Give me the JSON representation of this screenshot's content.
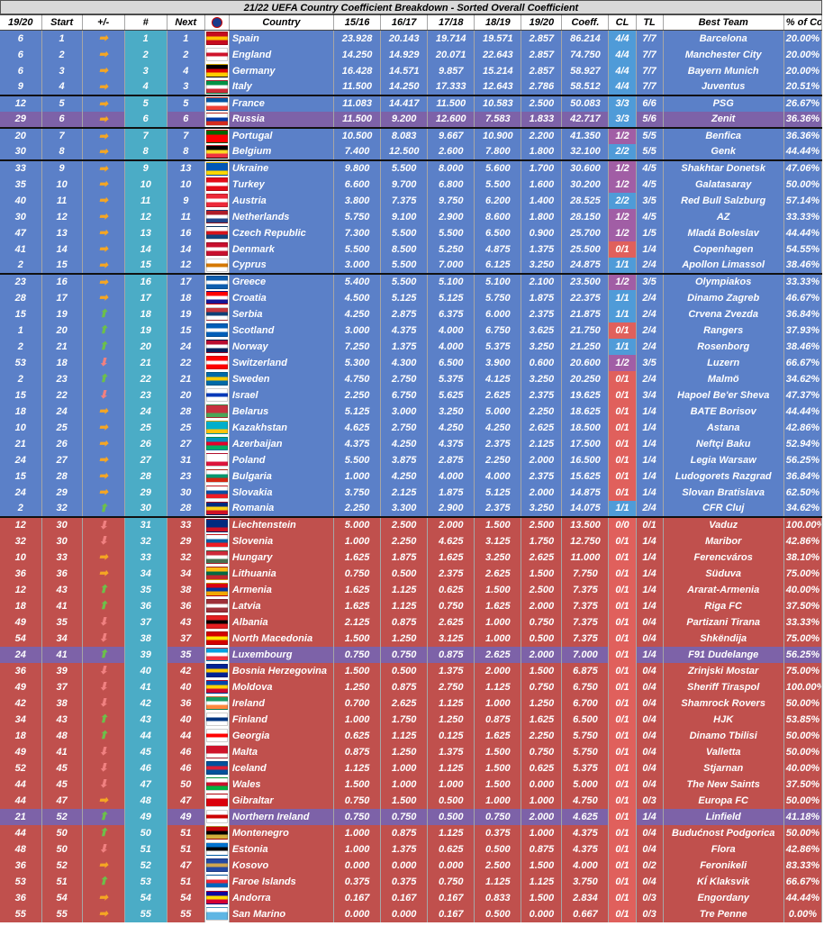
{
  "title": "21/22 UEFA Country Coefficient Breakdown - Sorted Overall Coefficient",
  "headers": [
    "19/20",
    "Start",
    "+/-",
    "#",
    "Next",
    "",
    "Country",
    "15/16",
    "16/17",
    "17/18",
    "18/19",
    "19/20",
    "Coeff.",
    "CL",
    "TL",
    "Best Team",
    "% of Coeff."
  ],
  "rows": [
    [
      "6",
      "1",
      "same",
      "1",
      "1",
      "#c60b1e|#ffc400|#c60b1e",
      "Spain",
      "23.928",
      "20.143",
      "19.714",
      "19.571",
      "2.857",
      "86.214",
      "4/4",
      "7/7",
      "Barcelona",
      "20.00%",
      "blue",
      "",
      "cl-b"
    ],
    [
      "6",
      "2",
      "same",
      "2",
      "2",
      "#ffffff|#cf142b|#ffffff",
      "England",
      "14.250",
      "14.929",
      "20.071",
      "22.643",
      "2.857",
      "74.750",
      "4/4",
      "7/7",
      "Manchester City",
      "20.00%",
      "blue",
      "",
      "cl-b"
    ],
    [
      "6",
      "3",
      "same",
      "3",
      "4",
      "#000000|#dd0000|#ffce00",
      "Germany",
      "16.428",
      "14.571",
      "9.857",
      "15.214",
      "2.857",
      "58.927",
      "4/4",
      "7/7",
      "Bayern Munich",
      "20.00%",
      "blue",
      "",
      "cl-b"
    ],
    [
      "9",
      "4",
      "same",
      "4",
      "3",
      "#009246|#ffffff|#ce2b37",
      "Italy",
      "11.500",
      "14.250",
      "17.333",
      "12.643",
      "2.786",
      "58.512",
      "4/4",
      "7/7",
      "Juventus",
      "20.51%",
      "blue",
      "",
      "cl-b"
    ],
    [
      "12",
      "5",
      "same",
      "5",
      "5",
      "#0055a4|#ffffff|#ef4135",
      "France",
      "11.083",
      "14.417",
      "11.500",
      "10.583",
      "2.500",
      "50.083",
      "3/3",
      "6/6",
      "PSG",
      "26.67%",
      "blue",
      "bt",
      "cl-b"
    ],
    [
      "29",
      "6",
      "same",
      "6",
      "6",
      "#ffffff|#0039a6|#d52b1e",
      "Russia",
      "11.500",
      "9.200",
      "12.600",
      "7.583",
      "1.833",
      "42.717",
      "3/3",
      "5/6",
      "Zenit",
      "36.36%",
      "purple",
      "",
      "cl-b"
    ],
    [
      "20",
      "7",
      "same",
      "7",
      "7",
      "#006600|#ff0000|#ff0000",
      "Portugal",
      "10.500",
      "8.083",
      "9.667",
      "10.900",
      "2.200",
      "41.350",
      "1/2",
      "5/5",
      "Benfica",
      "36.36%",
      "blue",
      "bt",
      "cl-p"
    ],
    [
      "30",
      "8",
      "same",
      "8",
      "8",
      "#000000|#fdda24|#ef3340",
      "Belgium",
      "7.400",
      "12.500",
      "2.600",
      "7.800",
      "1.800",
      "32.100",
      "2/2",
      "5/5",
      "Genk",
      "44.44%",
      "blue",
      "",
      "cl-b"
    ],
    [
      "33",
      "9",
      "same",
      "9",
      "13",
      "#0057b7|#0057b7|#ffd700",
      "Ukraine",
      "9.800",
      "5.500",
      "8.000",
      "5.600",
      "1.700",
      "30.600",
      "1/2",
      "4/5",
      "Shakhtar Donetsk",
      "47.06%",
      "blue",
      "bt",
      "cl-p"
    ],
    [
      "35",
      "10",
      "same",
      "10",
      "10",
      "#e30a17|#ffffff|#e30a17",
      "Turkey",
      "6.600",
      "9.700",
      "6.800",
      "5.500",
      "1.600",
      "30.200",
      "1/2",
      "4/5",
      "Galatasaray",
      "50.00%",
      "blue",
      "",
      "cl-p"
    ],
    [
      "40",
      "11",
      "same",
      "11",
      "9",
      "#ed2939|#ffffff|#ed2939",
      "Austria",
      "3.800",
      "7.375",
      "9.750",
      "6.200",
      "1.400",
      "28.525",
      "2/2",
      "3/5",
      "Red Bull Salzburg",
      "57.14%",
      "blue",
      "",
      "cl-b"
    ],
    [
      "30",
      "12",
      "same",
      "12",
      "11",
      "#ae1c28|#ffffff|#21468b",
      "Netherlands",
      "5.750",
      "9.100",
      "2.900",
      "8.600",
      "1.800",
      "28.150",
      "1/2",
      "4/5",
      "AZ",
      "33.33%",
      "blue",
      "",
      "cl-p"
    ],
    [
      "47",
      "13",
      "same",
      "13",
      "16",
      "#ffffff|#d7141a|#11457e",
      "Czech Republic",
      "7.300",
      "5.500",
      "5.500",
      "6.500",
      "0.900",
      "25.700",
      "1/2",
      "1/5",
      "Mladá Boleslav",
      "44.44%",
      "blue",
      "",
      "cl-p"
    ],
    [
      "41",
      "14",
      "same",
      "14",
      "14",
      "#c8102e|#ffffff|#c8102e",
      "Denmark",
      "5.500",
      "8.500",
      "5.250",
      "4.875",
      "1.375",
      "25.500",
      "0/1",
      "1/4",
      "Copenhagen",
      "54.55%",
      "blue",
      "",
      "cl-r"
    ],
    [
      "2",
      "15",
      "same",
      "15",
      "12",
      "#ffffff|#d57800|#ffffff",
      "Cyprus",
      "3.000",
      "5.500",
      "7.000",
      "6.125",
      "3.250",
      "24.875",
      "1/1",
      "2/4",
      "Apollon Limassol",
      "38.46%",
      "blue",
      "",
      "cl-b"
    ],
    [
      "23",
      "16",
      "same",
      "16",
      "17",
      "#0d5eaf|#ffffff|#0d5eaf",
      "Greece",
      "5.400",
      "5.500",
      "5.100",
      "5.100",
      "2.100",
      "23.500",
      "1/2",
      "3/5",
      "Olympiakos",
      "33.33%",
      "blue",
      "bt",
      "cl-p"
    ],
    [
      "28",
      "17",
      "same",
      "17",
      "18",
      "#ff0000|#ffffff|#171796",
      "Croatia",
      "4.500",
      "5.125",
      "5.125",
      "5.750",
      "1.875",
      "22.375",
      "1/1",
      "2/4",
      "Dinamo Zagreb",
      "46.67%",
      "blue",
      "",
      "cl-b"
    ],
    [
      "15",
      "19",
      "up",
      "18",
      "19",
      "#c6363c|#0c4076|#ffffff",
      "Serbia",
      "4.250",
      "2.875",
      "6.375",
      "6.000",
      "2.375",
      "21.875",
      "1/1",
      "2/4",
      "Crvena Zvezda",
      "36.84%",
      "blue",
      "",
      "cl-b"
    ],
    [
      "1",
      "20",
      "up",
      "19",
      "15",
      "#005eb8|#ffffff|#005eb8",
      "Scotland",
      "3.000",
      "4.375",
      "4.000",
      "6.750",
      "3.625",
      "21.750",
      "0/1",
      "2/4",
      "Rangers",
      "37.93%",
      "blue",
      "",
      "cl-r"
    ],
    [
      "2",
      "21",
      "up",
      "20",
      "24",
      "#ba0c2f|#ffffff|#00205b",
      "Norway",
      "7.250",
      "1.375",
      "4.000",
      "5.375",
      "3.250",
      "21.250",
      "1/1",
      "2/4",
      "Rosenborg",
      "38.46%",
      "blue",
      "",
      "cl-b"
    ],
    [
      "53",
      "18",
      "down",
      "21",
      "22",
      "#ff0000|#ffffff|#ff0000",
      "Switzerland",
      "5.300",
      "4.300",
      "6.500",
      "3.900",
      "0.600",
      "20.600",
      "1/2",
      "3/5",
      "Luzern",
      "66.67%",
      "blue",
      "",
      "cl-p"
    ],
    [
      "2",
      "23",
      "up",
      "22",
      "21",
      "#006aa7|#fecc00|#006aa7",
      "Sweden",
      "4.750",
      "2.750",
      "5.375",
      "4.125",
      "3.250",
      "20.250",
      "0/1",
      "2/4",
      "Malmö",
      "34.62%",
      "blue",
      "",
      "cl-r"
    ],
    [
      "15",
      "22",
      "down",
      "23",
      "20",
      "#ffffff|#0038b8|#ffffff",
      "Israel",
      "2.250",
      "6.750",
      "5.625",
      "2.625",
      "2.375",
      "19.625",
      "0/1",
      "3/4",
      "Hapoel Be'er Sheva",
      "47.37%",
      "blue",
      "",
      "cl-r"
    ],
    [
      "18",
      "24",
      "same",
      "24",
      "28",
      "#c8313e|#c8313e|#4aa657",
      "Belarus",
      "5.125",
      "3.000",
      "3.250",
      "5.000",
      "2.250",
      "18.625",
      "0/1",
      "1/4",
      "BATE Borisov",
      "44.44%",
      "blue",
      "",
      "cl-r"
    ],
    [
      "10",
      "25",
      "same",
      "25",
      "25",
      "#00afca|#00afca|#fec50c",
      "Kazakhstan",
      "4.625",
      "2.750",
      "4.250",
      "4.250",
      "2.625",
      "18.500",
      "0/1",
      "1/4",
      "Astana",
      "42.86%",
      "blue",
      "",
      "cl-r"
    ],
    [
      "21",
      "26",
      "same",
      "26",
      "27",
      "#0092bc|#e4002b|#00af66",
      "Azerbaijan",
      "4.375",
      "4.250",
      "4.375",
      "2.375",
      "2.125",
      "17.500",
      "0/1",
      "1/4",
      "Neftçi Baku",
      "52.94%",
      "blue",
      "",
      "cl-r"
    ],
    [
      "24",
      "27",
      "same",
      "27",
      "31",
      "#ffffff|#ffffff|#dc143c",
      "Poland",
      "5.500",
      "3.875",
      "2.875",
      "2.250",
      "2.000",
      "16.500",
      "0/1",
      "1/4",
      "Legia Warsaw",
      "56.25%",
      "blue",
      "",
      "cl-r"
    ],
    [
      "15",
      "28",
      "same",
      "28",
      "23",
      "#ffffff|#00966e|#d62612",
      "Bulgaria",
      "1.000",
      "4.250",
      "4.000",
      "4.000",
      "2.375",
      "15.625",
      "0/1",
      "1/4",
      "Ludogorets Razgrad",
      "36.84%",
      "blue",
      "",
      "cl-r"
    ],
    [
      "24",
      "29",
      "same",
      "29",
      "30",
      "#ffffff|#0b4ea2|#ee1c25",
      "Slovakia",
      "3.750",
      "2.125",
      "1.875",
      "5.125",
      "2.000",
      "14.875",
      "0/1",
      "1/4",
      "Slovan Bratislava",
      "62.50%",
      "blue",
      "",
      "cl-r"
    ],
    [
      "2",
      "32",
      "up",
      "30",
      "28",
      "#002b7f|#fcd116|#ce1126",
      "Romania",
      "2.250",
      "3.300",
      "2.900",
      "2.375",
      "3.250",
      "14.075",
      "1/1",
      "2/4",
      "CFR Cluj",
      "34.62%",
      "blue",
      "",
      "cl-b"
    ],
    [
      "12",
      "30",
      "down",
      "31",
      "33",
      "#002b7f|#002b7f|#ce1126",
      "Liechtenstein",
      "5.000",
      "2.500",
      "2.000",
      "1.500",
      "2.500",
      "13.500",
      "0/0",
      "0/1",
      "Vaduz",
      "100.00%",
      "red",
      "bt",
      "cl-r"
    ],
    [
      "32",
      "30",
      "down",
      "32",
      "29",
      "#ffffff|#005da4|#ed1c24",
      "Slovenia",
      "1.000",
      "2.250",
      "4.625",
      "3.125",
      "1.750",
      "12.750",
      "0/1",
      "1/4",
      "Maribor",
      "42.86%",
      "red",
      "",
      "cl-r"
    ],
    [
      "10",
      "33",
      "same",
      "33",
      "32",
      "#ce2939|#ffffff|#477050",
      "Hungary",
      "1.625",
      "1.875",
      "1.625",
      "3.250",
      "2.625",
      "11.000",
      "0/1",
      "1/4",
      "Ferencváros",
      "38.10%",
      "red",
      "",
      "cl-r"
    ],
    [
      "36",
      "36",
      "same",
      "34",
      "34",
      "#fdb913|#006a44|#c1272d",
      "Lithuania",
      "0.750",
      "0.500",
      "2.375",
      "2.625",
      "1.500",
      "7.750",
      "0/1",
      "1/4",
      "Süduva",
      "75.00%",
      "red",
      "",
      "cl-r"
    ],
    [
      "12",
      "43",
      "up",
      "35",
      "38",
      "#d90012|#0033a0|#f2a800",
      "Armenia",
      "1.625",
      "1.125",
      "0.625",
      "1.500",
      "2.500",
      "7.375",
      "0/1",
      "1/4",
      "Ararat-Armenia",
      "40.00%",
      "red",
      "",
      "cl-r"
    ],
    [
      "18",
      "41",
      "up",
      "36",
      "36",
      "#9e3039|#ffffff|#9e3039",
      "Latvia",
      "1.625",
      "1.125",
      "0.750",
      "1.625",
      "2.000",
      "7.375",
      "0/1",
      "1/4",
      "Riga FC",
      "37.50%",
      "red",
      "",
      "cl-r"
    ],
    [
      "49",
      "35",
      "down",
      "37",
      "43",
      "#e41e20|#000000|#e41e20",
      "Albania",
      "2.125",
      "0.875",
      "2.625",
      "1.000",
      "0.750",
      "7.375",
      "0/1",
      "0/4",
      "Partizani Tirana",
      "33.33%",
      "red",
      "",
      "cl-r"
    ],
    [
      "54",
      "34",
      "down",
      "38",
      "37",
      "#d20000|#ffe600|#d20000",
      "North Macedonia",
      "1.500",
      "1.250",
      "3.125",
      "1.000",
      "0.500",
      "7.375",
      "0/1",
      "0/4",
      "Shkëndija",
      "75.00%",
      "red",
      "",
      "cl-r"
    ],
    [
      "24",
      "41",
      "up",
      "39",
      "35",
      "#00a2e1|#ffffff|#ef3340",
      "Luxembourg",
      "0.750",
      "0.750",
      "0.875",
      "2.625",
      "2.000",
      "7.000",
      "0/1",
      "1/4",
      "F91 Dudelange",
      "56.25%",
      "purple",
      "",
      "cl-r"
    ],
    [
      "36",
      "39",
      "down",
      "40",
      "42",
      "#002395|#fecb00|#002395",
      "Bosnia Herzegovina",
      "1.500",
      "0.500",
      "1.375",
      "2.000",
      "1.500",
      "6.875",
      "0/1",
      "0/4",
      "Zrinjski Mostar",
      "75.00%",
      "red",
      "",
      "cl-r"
    ],
    [
      "49",
      "37",
      "down",
      "41",
      "40",
      "#0046ae|#ffd200|#cc092f",
      "Moldova",
      "1.250",
      "0.875",
      "2.750",
      "1.125",
      "0.750",
      "6.750",
      "0/1",
      "0/4",
      "Sheriff Tiraspol",
      "100.00%",
      "red",
      "",
      "cl-r"
    ],
    [
      "42",
      "38",
      "down",
      "42",
      "36",
      "#169b62|#ffffff|#ff883e",
      "Ireland",
      "0.700",
      "2.625",
      "1.125",
      "1.000",
      "1.250",
      "6.700",
      "0/1",
      "0/4",
      "Shamrock Rovers",
      "50.00%",
      "red",
      "",
      "cl-r"
    ],
    [
      "34",
      "43",
      "up",
      "43",
      "40",
      "#ffffff|#003580|#ffffff",
      "Finland",
      "1.000",
      "1.750",
      "1.250",
      "0.875",
      "1.625",
      "6.500",
      "0/1",
      "0/4",
      "HJK",
      "53.85%",
      "red",
      "",
      "cl-r"
    ],
    [
      "18",
      "48",
      "up",
      "44",
      "44",
      "#ffffff|#ff0000|#ffffff",
      "Georgia",
      "0.625",
      "1.125",
      "0.125",
      "1.625",
      "2.250",
      "5.750",
      "0/1",
      "0/4",
      "Dinamo Tbilisi",
      "50.00%",
      "red",
      "",
      "cl-r"
    ],
    [
      "49",
      "41",
      "down",
      "45",
      "46",
      "#cf142b|#cf142b|#ffffff",
      "Malta",
      "0.875",
      "1.250",
      "1.375",
      "1.500",
      "0.750",
      "5.750",
      "0/1",
      "0/4",
      "Valletta",
      "50.00%",
      "red",
      "",
      "cl-r"
    ],
    [
      "52",
      "45",
      "down",
      "46",
      "46",
      "#02529c|#dc1e35|#02529c",
      "Iceland",
      "1.125",
      "1.000",
      "1.125",
      "1.500",
      "0.625",
      "5.375",
      "0/1",
      "0/4",
      "Stjarnan",
      "40.00%",
      "red",
      "",
      "cl-r"
    ],
    [
      "44",
      "45",
      "down",
      "47",
      "50",
      "#ffffff|#c8102e|#00b140",
      "Wales",
      "1.500",
      "1.000",
      "1.000",
      "1.500",
      "0.000",
      "5.000",
      "0/1",
      "0/4",
      "The New Saints",
      "37.50%",
      "red",
      "",
      "cl-r"
    ],
    [
      "44",
      "47",
      "same",
      "48",
      "47",
      "#ffffff|#da000c|#da000c",
      "Gibraltar",
      "0.750",
      "1.500",
      "0.500",
      "1.000",
      "1.000",
      "4.750",
      "0/1",
      "0/3",
      "Europa FC",
      "50.00%",
      "red",
      "",
      "cl-r"
    ],
    [
      "21",
      "52",
      "up",
      "49",
      "49",
      "#ffffff|#cc0000|#ffffff",
      "Northern Ireland",
      "0.750",
      "0.750",
      "0.500",
      "0.750",
      "2.000",
      "4.625",
      "0/1",
      "1/4",
      "Linfield",
      "41.18%",
      "purple",
      "",
      "cl-r"
    ],
    [
      "44",
      "50",
      "up",
      "50",
      "51",
      "#c40308|#000000|#d3ae3b",
      "Montenegro",
      "1.000",
      "0.875",
      "1.125",
      "0.375",
      "1.000",
      "4.375",
      "0/1",
      "0/4",
      "Budućnost Podgorica",
      "50.00%",
      "red",
      "",
      "cl-r"
    ],
    [
      "48",
      "50",
      "down",
      "51",
      "51",
      "#0072ce|#000000|#ffffff",
      "Estonia",
      "1.000",
      "1.375",
      "0.625",
      "0.500",
      "0.875",
      "4.375",
      "0/1",
      "0/4",
      "Flora",
      "42.86%",
      "red",
      "",
      "cl-r"
    ],
    [
      "36",
      "52",
      "same",
      "52",
      "47",
      "#244aa5|#d0a650|#244aa5",
      "Kosovo",
      "0.000",
      "0.000",
      "0.000",
      "2.500",
      "1.500",
      "4.000",
      "0/1",
      "0/2",
      "Feronikeli",
      "83.33%",
      "red",
      "",
      "cl-r"
    ],
    [
      "53",
      "51",
      "up",
      "53",
      "51",
      "#ffffff|#ed2939|#0065bd",
      "Faroe Islands",
      "0.375",
      "0.375",
      "0.750",
      "1.125",
      "1.125",
      "3.750",
      "0/1",
      "0/4",
      "KÍ Klaksvik",
      "66.67%",
      "red",
      "",
      "cl-r"
    ],
    [
      "36",
      "54",
      "same",
      "54",
      "54",
      "#10069f|#fedd00|#d50032",
      "Andorra",
      "0.167",
      "0.167",
      "0.167",
      "0.833",
      "1.500",
      "2.834",
      "0/1",
      "0/3",
      "Engordany",
      "44.44%",
      "red",
      "",
      "cl-r"
    ],
    [
      "55",
      "55",
      "same",
      "55",
      "55",
      "#ffffff|#5eb6e4|#5eb6e4",
      "San Marino",
      "0.000",
      "0.000",
      "0.167",
      "0.500",
      "0.000",
      "0.667",
      "0/1",
      "0/3",
      "Tre Penne",
      "0.00%",
      "red",
      "",
      "cl-r"
    ]
  ],
  "colors": {
    "blue": "#5b80c8",
    "purple": "#7d62a8",
    "red": "#c0504d",
    "current": "#4bacc6",
    "arrow_same": "#f5a623",
    "arrow_up": "#6cc04a",
    "arrow_down": "#f08080"
  },
  "icons": {
    "same": "right-arrow-icon",
    "up": "up-arrow-icon",
    "down": "down-arrow-icon",
    "header_logo": "uefa-logo-icon"
  }
}
